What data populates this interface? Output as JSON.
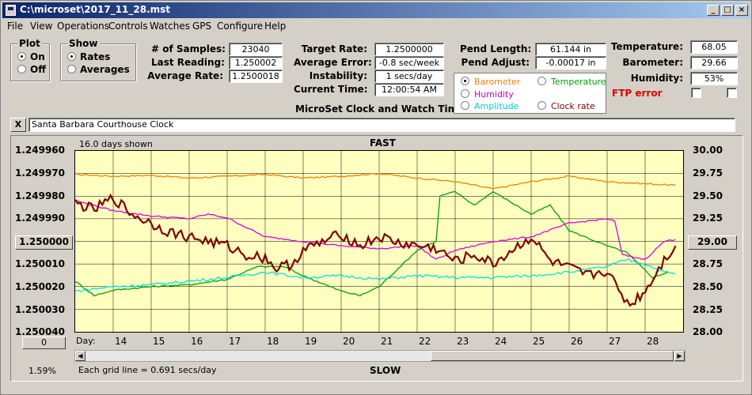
{
  "window": {
    "title": "C:\\microset\\2017_11_28.mst"
  },
  "menu": [
    "File",
    "View",
    "Operations",
    "Controls",
    "Watches",
    "GPS",
    "Configure",
    "Help"
  ],
  "plot_group": {
    "title": "Plot",
    "on": "On",
    "off": "Off",
    "selected": "On"
  },
  "show_group": {
    "title": "Show",
    "rates": "Rates",
    "averages": "Averages",
    "selected": "Rates"
  },
  "stats": {
    "samples_label": "# of Samples:",
    "samples": "23040",
    "last_label": "Last Reading:",
    "last": "1.250002",
    "avg_label": "Average Rate:",
    "avg": "1.2500018",
    "target_label": "Target Rate:",
    "target": "1.2500000",
    "avgerr_label": "Average Error:",
    "avgerr": "-0.8 sec/week",
    "instab_label": "Instability:",
    "instab": "1 secs/day",
    "time_label": "Current Time:",
    "time": "12:00:54 AM",
    "pendlen_label": "Pend Length:",
    "pendlen": "61.144 in",
    "pendadj_label": "Pend Adjust:",
    "pendadj": "-0.00017 in",
    "temp_label": "Temperature:",
    "temp": "68.05",
    "baro_label": "Barometer:",
    "baro": "29.66",
    "hum_label": "Humidity:",
    "hum": "53%"
  },
  "app_caption": "MicroSet Clock and Watch Timer",
  "ftp_error": "FTP error",
  "series_select": {
    "barometer": "Barometer",
    "temperature": "Temperature",
    "humidity": "Humidity",
    "amplitude": "Amplitude",
    "clockrate": "Clock rate",
    "selected": "Barometer"
  },
  "clock_name": "Santa Barbara Courthouse Clock",
  "close_label": "X",
  "chart": {
    "days_shown": "16.0 days shown",
    "fast": "FAST",
    "slow": "SLOW",
    "grid_note": "Each grid line = 0.691 secs/day",
    "day_label": "Day:",
    "left_button": "1.250000",
    "right_button": "29.00",
    "bottom_button": "0",
    "percent": "1.59%"
  },
  "chart_data": {
    "type": "line",
    "x_days": [
      "14",
      "15",
      "16",
      "17",
      "18",
      "19",
      "20",
      "21",
      "22",
      "23",
      "24",
      "25",
      "26",
      "27",
      "28"
    ],
    "left_axis": {
      "ticks": [
        "1.249960",
        "1.249970",
        "1.249980",
        "1.249990",
        "1.250000",
        "1.250010",
        "1.250020",
        "1.250030",
        "1.250040"
      ],
      "range": [
        1.24996,
        1.25004
      ]
    },
    "right_axis": {
      "ticks": [
        "30.00",
        "29.75",
        "29.50",
        "29.25",
        "29.00",
        "28.75",
        "28.50",
        "28.25",
        "28.00"
      ],
      "range": [
        28.0,
        30.0
      ]
    },
    "series": [
      {
        "color": "#f08000",
        "points": [
          [
            13,
            29.74
          ],
          [
            14,
            29.72
          ],
          [
            15,
            29.73
          ],
          [
            16,
            29.7
          ],
          [
            17,
            29.72
          ],
          [
            18,
            29.74
          ],
          [
            19,
            29.7
          ],
          [
            20,
            29.72
          ],
          [
            21,
            29.75
          ],
          [
            22,
            29.7
          ],
          [
            23,
            29.66
          ],
          [
            24,
            29.58
          ],
          [
            25,
            29.66
          ],
          [
            26,
            29.72
          ],
          [
            27,
            29.66
          ],
          [
            28.8,
            29.62
          ]
        ]
      },
      {
        "color": "#00a000",
        "points": [
          [
            13,
            28.56
          ],
          [
            13.5,
            28.4
          ],
          [
            14,
            28.46
          ],
          [
            15,
            28.5
          ],
          [
            16,
            28.52
          ],
          [
            17,
            28.58
          ],
          [
            17.8,
            28.72
          ],
          [
            18.5,
            28.72
          ],
          [
            19,
            28.62
          ],
          [
            20,
            28.45
          ],
          [
            20.5,
            28.4
          ],
          [
            21,
            28.5
          ],
          [
            22,
            28.9
          ],
          [
            22.5,
            29.0
          ],
          [
            22.6,
            29.5
          ],
          [
            23,
            29.55
          ],
          [
            23.5,
            29.4
          ],
          [
            24,
            29.55
          ],
          [
            25,
            29.3
          ],
          [
            25.5,
            29.4
          ],
          [
            26,
            29.12
          ],
          [
            27,
            28.95
          ],
          [
            27.5,
            28.88
          ],
          [
            28.2,
            28.6
          ],
          [
            28.6,
            28.66
          ]
        ]
      },
      {
        "color": "#e000e0",
        "points": [
          [
            13,
            29.45
          ],
          [
            14,
            29.34
          ],
          [
            15,
            29.28
          ],
          [
            16,
            29.25
          ],
          [
            16.5,
            29.3
          ],
          [
            17,
            29.26
          ],
          [
            18,
            29.05
          ],
          [
            19,
            29.0
          ],
          [
            20,
            28.95
          ],
          [
            21,
            28.92
          ],
          [
            22,
            28.95
          ],
          [
            22.5,
            28.8
          ],
          [
            23,
            28.9
          ],
          [
            24,
            29.0
          ],
          [
            25,
            29.05
          ],
          [
            26,
            29.2
          ],
          [
            27,
            29.25
          ],
          [
            27.2,
            29.22
          ],
          [
            27.4,
            28.85
          ],
          [
            28,
            28.8
          ],
          [
            28.5,
            29.0
          ],
          [
            28.8,
            29.02
          ]
        ]
      },
      {
        "color": "#00e0e0",
        "points": [
          [
            13,
            28.45
          ],
          [
            14,
            28.5
          ],
          [
            15,
            28.52
          ],
          [
            16,
            28.56
          ],
          [
            17,
            28.6
          ],
          [
            18,
            28.66
          ],
          [
            19,
            28.6
          ],
          [
            20,
            28.62
          ],
          [
            21,
            28.58
          ],
          [
            22,
            28.62
          ],
          [
            23,
            28.6
          ],
          [
            24,
            28.6
          ],
          [
            25,
            28.62
          ],
          [
            26,
            28.66
          ],
          [
            27,
            28.72
          ],
          [
            27.5,
            28.8
          ],
          [
            28,
            28.75
          ],
          [
            28.5,
            28.66
          ],
          [
            28.8,
            28.64
          ]
        ]
      },
      {
        "color": "#800000",
        "points": [
          [
            13,
            29.42
          ],
          [
            13.5,
            29.35
          ],
          [
            14,
            29.48
          ],
          [
            14.5,
            29.3
          ],
          [
            15,
            29.2
          ],
          [
            15.5,
            29.1
          ],
          [
            16,
            29.05
          ],
          [
            17,
            28.95
          ],
          [
            17.5,
            28.85
          ],
          [
            18,
            28.82
          ],
          [
            18.3,
            28.7
          ],
          [
            18.7,
            28.75
          ],
          [
            19,
            28.9
          ],
          [
            20,
            29.08
          ],
          [
            20.5,
            28.95
          ],
          [
            21,
            29.05
          ],
          [
            21.5,
            28.98
          ],
          [
            22,
            28.95
          ],
          [
            22.5,
            28.92
          ],
          [
            23,
            28.78
          ],
          [
            23.5,
            28.85
          ],
          [
            24,
            28.75
          ],
          [
            25,
            29.05
          ],
          [
            25.5,
            28.78
          ],
          [
            26,
            28.7
          ],
          [
            26.5,
            28.62
          ],
          [
            27,
            28.68
          ],
          [
            27.3,
            28.45
          ],
          [
            27.6,
            28.3
          ],
          [
            28,
            28.45
          ],
          [
            28.5,
            28.8
          ],
          [
            28.8,
            28.95
          ]
        ]
      }
    ]
  }
}
